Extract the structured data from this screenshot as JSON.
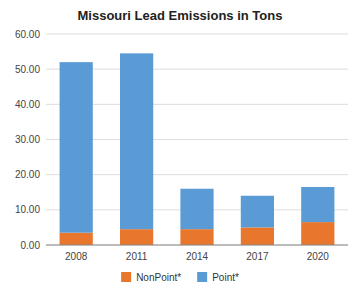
{
  "chart_data": {
    "type": "bar",
    "stacked": true,
    "title": "Missouri Lead Emissions in Tons",
    "categories": [
      "2008",
      "2011",
      "2014",
      "2017",
      "2020"
    ],
    "series": [
      {
        "name": "NonPoint*",
        "color": "#E8762C",
        "values": [
          3.5,
          4.5,
          4.5,
          5.0,
          6.5
        ]
      },
      {
        "name": "Point*",
        "color": "#5B9BD5",
        "values": [
          48.5,
          50.0,
          11.5,
          9.0,
          10.0
        ]
      }
    ],
    "ylim": [
      0,
      60
    ],
    "yticks": [
      {
        "value": 0.0,
        "label": "0.00"
      },
      {
        "value": 10.0,
        "label": "10.00"
      },
      {
        "value": 20.0,
        "label": "20.00"
      },
      {
        "value": 30.0,
        "label": "30.00"
      },
      {
        "value": 40.0,
        "label": "40.00"
      },
      {
        "value": 50.0,
        "label": "50.00"
      },
      {
        "value": 60.0,
        "label": "60.00"
      }
    ],
    "grid": true,
    "legend": "bottom"
  }
}
